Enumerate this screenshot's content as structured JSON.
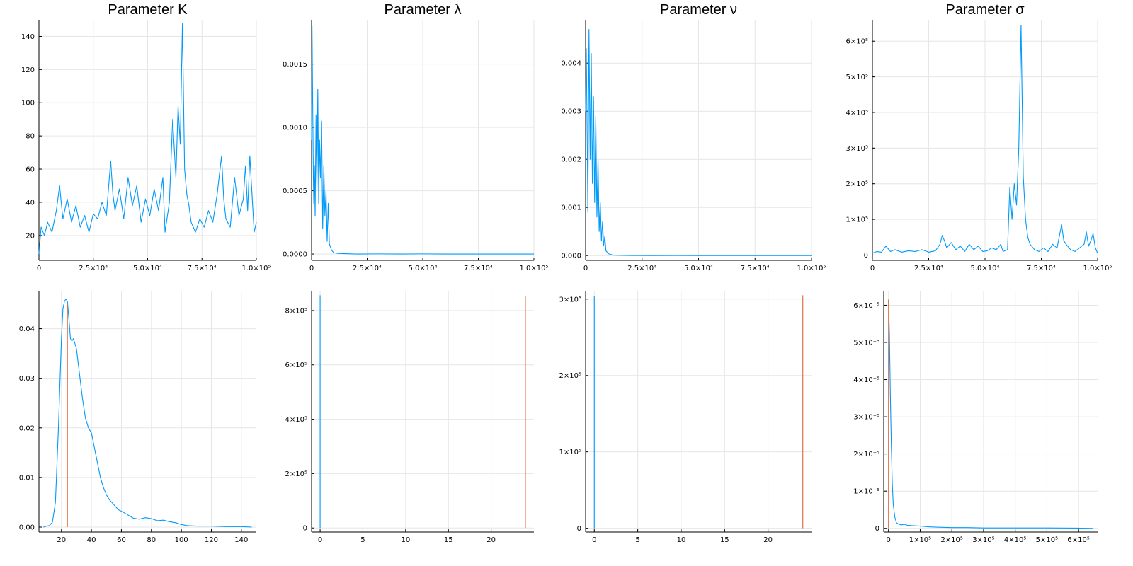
{
  "colors": {
    "series": "#009AFA",
    "marker": "#E26F46"
  },
  "chart_data": [
    {
      "type": "line",
      "title": "Parameter K",
      "xlim": [
        0,
        100000
      ],
      "ylim": [
        5,
        150
      ],
      "xticks": [
        0,
        25000,
        50000,
        75000,
        100000
      ],
      "xticklabels": [
        "0",
        "2.5×10⁴",
        "5.0×10⁴",
        "7.5×10⁴",
        "1.0×10⁵"
      ],
      "yticks": [
        20,
        40,
        60,
        80,
        100,
        120,
        140
      ],
      "yticklabels": [
        "20",
        "40",
        "60",
        "80",
        "100",
        "120",
        "140"
      ],
      "grid": true,
      "series": [
        {
          "color": "#009AFA",
          "x": [
            0,
            1000,
            2500,
            4000,
            6000,
            8000,
            9500,
            11000,
            13000,
            15000,
            17000,
            19000,
            21000,
            23000,
            25000,
            27000,
            29000,
            31000,
            33000,
            34000,
            35000,
            37000,
            39000,
            41000,
            43000,
            45000,
            47000,
            49000,
            51000,
            53000,
            55000,
            57000,
            58000,
            60000,
            61500,
            63000,
            64000,
            65000,
            66000,
            67000,
            68000,
            69000,
            70000,
            72000,
            74000,
            76000,
            78000,
            80000,
            82000,
            84000,
            85000,
            86000,
            88000,
            90000,
            92000,
            94000,
            95000,
            96000,
            97000,
            98000,
            99000,
            100000
          ],
          "y": [
            9,
            25,
            20,
            28,
            22,
            35,
            50,
            30,
            42,
            28,
            38,
            25,
            32,
            22,
            33,
            30,
            40,
            32,
            65,
            45,
            35,
            48,
            30,
            55,
            38,
            50,
            28,
            42,
            32,
            48,
            35,
            55,
            22,
            40,
            90,
            55,
            98,
            75,
            148,
            60,
            45,
            38,
            28,
            22,
            30,
            25,
            35,
            28,
            45,
            68,
            42,
            30,
            25,
            55,
            32,
            42,
            62,
            35,
            68,
            45,
            22,
            28
          ]
        }
      ]
    },
    {
      "type": "line",
      "title": "Parameter λ",
      "xlim": [
        0,
        100000
      ],
      "ylim": [
        -5e-05,
        0.00185
      ],
      "xticks": [
        0,
        25000,
        50000,
        75000,
        100000
      ],
      "xticklabels": [
        "0",
        "2.5×10⁴",
        "5.0×10⁴",
        "7.5×10⁴",
        "1.0×10⁵"
      ],
      "yticks": [
        0,
        0.0005,
        0.001,
        0.0015
      ],
      "yticklabels": [
        "0.0000",
        "0.0005",
        "0.0010",
        "0.0015"
      ],
      "grid": true,
      "series": [
        {
          "color": "#009AFA",
          "x": [
            0,
            200,
            500,
            800,
            1000,
            1300,
            1600,
            2000,
            2400,
            2800,
            3200,
            3600,
            4000,
            4500,
            5000,
            5500,
            6000,
            6500,
            7000,
            7500,
            8000,
            9000,
            10000,
            12000,
            15000,
            20000,
            30000,
            40000,
            50000,
            60000,
            70000,
            80000,
            90000,
            100000
          ],
          "y": [
            0.0009,
            0.0018,
            0.0012,
            0.0006,
            0.0004,
            0.0007,
            0.0003,
            0.0011,
            0.0005,
            0.0013,
            0.0004,
            0.0009,
            0.0006,
            0.00105,
            0.0002,
            0.0007,
            0.0003,
            0.0005,
            0.0001,
            0.0004,
            8e-05,
            3e-05,
            1e-05,
            5e-06,
            3e-06,
            0,
            1e-06,
            0,
            1e-06,
            0,
            0,
            0,
            0,
            0
          ]
        }
      ]
    },
    {
      "type": "line",
      "title": "Parameter ν",
      "xlim": [
        0,
        100000
      ],
      "ylim": [
        -0.0001,
        0.0049
      ],
      "xticks": [
        0,
        25000,
        50000,
        75000,
        100000
      ],
      "xticklabels": [
        "0",
        "2.5×10⁴",
        "5.0×10⁴",
        "7.5×10⁴",
        "1.0×10⁵"
      ],
      "yticks": [
        0,
        0.001,
        0.002,
        0.003,
        0.004
      ],
      "yticklabels": [
        "0.000",
        "0.001",
        "0.002",
        "0.003",
        "0.004"
      ],
      "grid": true,
      "series": [
        {
          "color": "#009AFA",
          "x": [
            0,
            300,
            700,
            1000,
            1500,
            2000,
            2500,
            3000,
            3500,
            4000,
            4500,
            5000,
            5500,
            6000,
            6500,
            7000,
            7500,
            8000,
            8500,
            9000,
            10000,
            12000,
            15000,
            20000,
            30000,
            40000,
            50000,
            60000,
            70000,
            80000,
            90000,
            100000
          ],
          "y": [
            0.003,
            0.0043,
            0.0025,
            0.0009,
            0.0047,
            0.002,
            0.0042,
            0.0015,
            0.0033,
            0.0011,
            0.0029,
            0.0008,
            0.002,
            0.0005,
            0.0011,
            0.0003,
            0.0007,
            0.0002,
            0.0004,
            0.0001,
            4e-05,
            1e-05,
            5e-06,
            2e-06,
            0,
            1e-06,
            0,
            0,
            0,
            0,
            0,
            0
          ]
        }
      ]
    },
    {
      "type": "line",
      "title": "Parameter σ",
      "xlim": [
        0,
        100000
      ],
      "ylim": [
        -15000,
        660000
      ],
      "xticks": [
        0,
        25000,
        50000,
        75000,
        100000
      ],
      "xticklabels": [
        "0",
        "2.5×10⁴",
        "5.0×10⁴",
        "7.5×10⁴",
        "1.0×10⁵"
      ],
      "yticks": [
        0,
        100000,
        200000,
        300000,
        400000,
        500000,
        600000
      ],
      "yticklabels": [
        "0",
        "1×10⁵",
        "2×10⁵",
        "3×10⁵",
        "4×10⁵",
        "5×10⁵",
        "6×10⁵"
      ],
      "grid": true,
      "series": [
        {
          "color": "#009AFA",
          "x": [
            0,
            2000,
            4000,
            6000,
            8000,
            10000,
            13000,
            16000,
            19000,
            22000,
            25000,
            28000,
            30000,
            31000,
            32000,
            33000,
            35000,
            37000,
            39000,
            41000,
            43000,
            45000,
            47000,
            49000,
            51000,
            53000,
            55000,
            57000,
            58000,
            60000,
            61000,
            62000,
            63000,
            64000,
            65000,
            66000,
            67000,
            68000,
            69000,
            70000,
            72000,
            74000,
            76000,
            78000,
            80000,
            82000,
            84000,
            85000,
            86000,
            88000,
            90000,
            92000,
            94000,
            95000,
            96000,
            97000,
            98000,
            99000,
            100000
          ],
          "y": [
            5000,
            10000,
            8000,
            25000,
            10000,
            15000,
            8000,
            12000,
            10000,
            15000,
            8000,
            12000,
            30000,
            55000,
            40000,
            20000,
            35000,
            15000,
            25000,
            10000,
            30000,
            15000,
            25000,
            10000,
            12000,
            20000,
            15000,
            30000,
            10000,
            15000,
            190000,
            100000,
            200000,
            140000,
            300000,
            645000,
            220000,
            100000,
            50000,
            30000,
            15000,
            10000,
            20000,
            10000,
            30000,
            20000,
            85000,
            40000,
            30000,
            15000,
            10000,
            20000,
            30000,
            65000,
            25000,
            40000,
            60000,
            20000,
            5000
          ]
        }
      ]
    },
    {
      "type": "line",
      "title": "",
      "xlim": [
        5,
        150
      ],
      "ylim": [
        -0.001,
        0.0475
      ],
      "xticks": [
        20,
        40,
        60,
        80,
        100,
        120,
        140
      ],
      "xticklabels": [
        "20",
        "40",
        "60",
        "80",
        "100",
        "120",
        "140"
      ],
      "yticks": [
        0,
        0.01,
        0.02,
        0.03,
        0.04
      ],
      "yticklabels": [
        "0.00",
        "0.01",
        "0.02",
        "0.03",
        "0.04"
      ],
      "grid": true,
      "vline": {
        "x": 24,
        "y0": 0,
        "y1": 0.045,
        "color": "#E26F46"
      },
      "series": [
        {
          "color": "#009AFA",
          "x": [
            8,
            10,
            12,
            14,
            16,
            18,
            20,
            21,
            22,
            23,
            24,
            25,
            26,
            27,
            28,
            30,
            32,
            34,
            36,
            38,
            40,
            42,
            44,
            46,
            48,
            50,
            52,
            55,
            58,
            60,
            64,
            68,
            72,
            76,
            80,
            84,
            88,
            92,
            96,
            100,
            104,
            110,
            120,
            130,
            140,
            147
          ],
          "y": [
            0,
            0.0002,
            0.0003,
            0.001,
            0.005,
            0.02,
            0.038,
            0.044,
            0.0455,
            0.046,
            0.0455,
            0.042,
            0.038,
            0.0375,
            0.038,
            0.036,
            0.031,
            0.026,
            0.022,
            0.02,
            0.019,
            0.016,
            0.013,
            0.01,
            0.008,
            0.0065,
            0.0055,
            0.0045,
            0.0035,
            0.0032,
            0.0025,
            0.0018,
            0.0016,
            0.0019,
            0.0017,
            0.0013,
            0.0014,
            0.0011,
            0.0009,
            0.0005,
            0.0003,
            0.0002,
            0.0002,
            0.0001,
            0.0001,
            0
          ]
        }
      ]
    },
    {
      "type": "line",
      "title": "",
      "xlim": [
        -1,
        25
      ],
      "ylim": [
        -15000,
        870000
      ],
      "xticks": [
        0,
        5,
        10,
        15,
        20
      ],
      "xticklabels": [
        "0",
        "5",
        "10",
        "15",
        "20"
      ],
      "yticks": [
        0,
        200000,
        400000,
        600000,
        800000
      ],
      "yticklabels": [
        "0",
        "2×10⁵",
        "4×10⁵",
        "6×10⁵",
        "8×10⁵"
      ],
      "grid": true,
      "vline": {
        "x": 24,
        "y0": 0,
        "y1": 855000,
        "color": "#E26F46"
      },
      "series": [
        {
          "color": "#009AFA",
          "x": [
            0,
            2e-05,
            0.0001,
            0.0003,
            0.0018
          ],
          "y": [
            0,
            855000,
            300000,
            5000,
            0
          ]
        }
      ]
    },
    {
      "type": "line",
      "title": "",
      "xlim": [
        -1,
        25
      ],
      "ylim": [
        -5000,
        310000
      ],
      "xticks": [
        0,
        5,
        10,
        15,
        20
      ],
      "xticklabels": [
        "0",
        "5",
        "10",
        "15",
        "20"
      ],
      "yticks": [
        0,
        100000,
        200000,
        300000
      ],
      "yticklabels": [
        "0",
        "1×10⁵",
        "2×10⁵",
        "3×10⁵"
      ],
      "grid": true,
      "vline": {
        "x": 24,
        "y0": 0,
        "y1": 305000,
        "color": "#E26F46"
      },
      "series": [
        {
          "color": "#009AFA",
          "x": [
            0,
            2e-05,
            0.0002,
            0.001,
            0.0048
          ],
          "y": [
            0,
            303000,
            120000,
            3000,
            0
          ]
        }
      ]
    },
    {
      "type": "line",
      "title": "",
      "xlim": [
        -15000,
        660000
      ],
      "ylim": [
        -1e-06,
        6.37e-05
      ],
      "xticks": [
        0,
        100000,
        200000,
        300000,
        400000,
        500000,
        600000
      ],
      "xticklabels": [
        "0",
        "1×10⁵",
        "2×10⁵",
        "3×10⁵",
        "4×10⁵",
        "5×10⁵",
        "6×10⁵"
      ],
      "yticks": [
        0,
        1e-05,
        2e-05,
        3e-05,
        4e-05,
        5e-05,
        6e-05
      ],
      "yticklabels": [
        "0",
        "1×10⁻⁵",
        "2×10⁻⁵",
        "3×10⁻⁵",
        "4×10⁻⁵",
        "5×10⁻⁵",
        "6×10⁻⁵"
      ],
      "grid": true,
      "vline": {
        "x": 0,
        "y0": 0,
        "y1": 6.15e-05,
        "color": "#E26F46"
      },
      "series": [
        {
          "color": "#009AFA",
          "x": [
            0,
            3000,
            6000,
            9000,
            12000,
            15000,
            20000,
            25000,
            30000,
            40000,
            50000,
            60000,
            80000,
            100000,
            130000,
            160000,
            200000,
            250000,
            300000,
            400000,
            500000,
            600000,
            645000
          ],
          "y": [
            6.15e-05,
            5.2e-05,
            3.5e-05,
            2.2e-05,
            1.2e-05,
            6.5e-06,
            3e-06,
            1.5e-06,
            1.2e-06,
            9e-07,
            1.1e-06,
            8e-07,
            7e-07,
            6e-07,
            4e-07,
            3e-07,
            2e-07,
            2e-07,
            1e-07,
            1e-07,
            1e-07,
            5e-08,
            0
          ]
        }
      ]
    }
  ]
}
